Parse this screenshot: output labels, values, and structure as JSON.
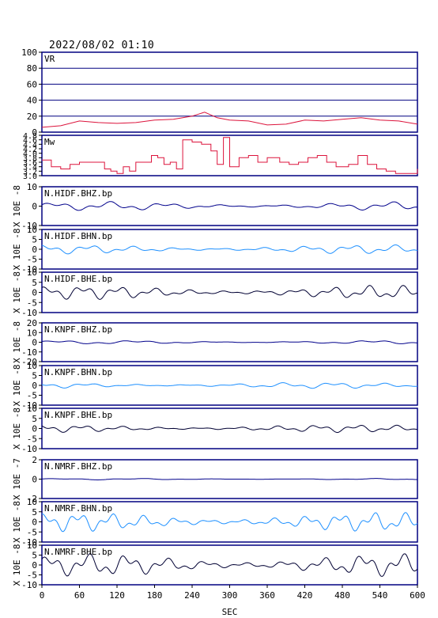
{
  "header": {
    "datetime": "2022/08/02 01:10"
  },
  "colors": {
    "axis": "#000000",
    "frame": "#000080",
    "vr": "#dc143c",
    "mw": "#dc143c",
    "bhz": "#00008b",
    "bhn": "#1e90ff",
    "bhe": "#000033"
  },
  "chart_data": {
    "type": "line",
    "xlabel": "SEC",
    "x_range": [
      0,
      600
    ],
    "x_ticks": [
      0,
      60,
      120,
      180,
      240,
      300,
      360,
      420,
      480,
      540,
      600
    ],
    "panels": [
      {
        "id": "vr",
        "label": "VR",
        "ylabel": "",
        "ylim": [
          0,
          100
        ],
        "yticks": [
          0,
          20,
          40,
          60,
          80,
          100
        ],
        "grid": true,
        "color_key": "vr",
        "points": [
          [
            0,
            6
          ],
          [
            30,
            8
          ],
          [
            60,
            14
          ],
          [
            90,
            12
          ],
          [
            120,
            11
          ],
          [
            150,
            12
          ],
          [
            180,
            15
          ],
          [
            210,
            16
          ],
          [
            240,
            20
          ],
          [
            260,
            25
          ],
          [
            280,
            18
          ],
          [
            300,
            15
          ],
          [
            330,
            14
          ],
          [
            360,
            9
          ],
          [
            390,
            10
          ],
          [
            420,
            15
          ],
          [
            450,
            14
          ],
          [
            480,
            16
          ],
          [
            510,
            18
          ],
          [
            540,
            15
          ],
          [
            570,
            14
          ],
          [
            600,
            10
          ]
        ]
      },
      {
        "id": "mw",
        "label": "Mw",
        "ylabel": "",
        "ylim": [
          3.0,
          4.8
        ],
        "yticks": [
          3.0,
          3.2,
          3.4,
          3.6,
          3.8,
          4.0,
          4.2,
          4.4,
          4.6,
          4.8
        ],
        "grid": false,
        "color_key": "mw",
        "points": [
          [
            0,
            3.7
          ],
          [
            15,
            3.4
          ],
          [
            30,
            3.3
          ],
          [
            45,
            3.5
          ],
          [
            60,
            3.6
          ],
          [
            90,
            3.6
          ],
          [
            100,
            3.3
          ],
          [
            110,
            3.2
          ],
          [
            120,
            3.1
          ],
          [
            130,
            3.4
          ],
          [
            140,
            3.2
          ],
          [
            150,
            3.6
          ],
          [
            165,
            3.6
          ],
          [
            175,
            3.9
          ],
          [
            185,
            3.8
          ],
          [
            195,
            3.5
          ],
          [
            205,
            3.6
          ],
          [
            215,
            3.3
          ],
          [
            225,
            4.6
          ],
          [
            240,
            4.5
          ],
          [
            255,
            4.4
          ],
          [
            270,
            4.1
          ],
          [
            280,
            3.5
          ],
          [
            290,
            4.7
          ],
          [
            300,
            3.4
          ],
          [
            315,
            3.8
          ],
          [
            330,
            3.9
          ],
          [
            345,
            3.6
          ],
          [
            360,
            3.8
          ],
          [
            380,
            3.6
          ],
          [
            395,
            3.5
          ],
          [
            410,
            3.6
          ],
          [
            425,
            3.8
          ],
          [
            440,
            3.9
          ],
          [
            455,
            3.6
          ],
          [
            470,
            3.4
          ],
          [
            490,
            3.5
          ],
          [
            505,
            3.9
          ],
          [
            520,
            3.5
          ],
          [
            535,
            3.3
          ],
          [
            550,
            3.2
          ],
          [
            565,
            3.1
          ],
          [
            580,
            3.1
          ],
          [
            600,
            3.3
          ]
        ]
      },
      {
        "id": "hidf-bhz",
        "label": "N.HIDF.BHZ.bp",
        "ylabel": "X 10E -8",
        "ylim": [
          -10,
          10
        ],
        "yticks": [
          -10,
          0,
          10
        ],
        "color_key": "bhz",
        "trace": {
          "amp": 0.12,
          "f1": 0.07,
          "f2": 0.18,
          "phase": 0.3
        }
      },
      {
        "id": "hidf-bhn",
        "label": "N.HIDF.BHN.bp",
        "ylabel": "X 10E -8",
        "ylim": [
          -10,
          10
        ],
        "yticks": [
          -10,
          -5,
          0,
          5,
          10
        ],
        "color_key": "bhn",
        "trace": {
          "amp": 0.12,
          "f1": 0.09,
          "f2": 0.21,
          "phase": 1.1
        }
      },
      {
        "id": "hidf-bhe",
        "label": "N.HIDF.BHE.bp",
        "ylabel": "X 10E -8",
        "ylim": [
          -10,
          10
        ],
        "yticks": [
          -10,
          -5,
          0,
          5,
          10
        ],
        "color_key": "bhe",
        "trace": {
          "amp": 0.18,
          "f1": 0.11,
          "f2": 0.24,
          "phase": 0.7
        }
      },
      {
        "id": "knpf-bhz",
        "label": "N.KNPF.BHZ.bp",
        "ylabel": "X 10E -8",
        "ylim": [
          -20,
          20
        ],
        "yticks": [
          -20,
          -10,
          0,
          10,
          20
        ],
        "color_key": "bhz",
        "trace": {
          "amp": 0.05,
          "f1": 0.05,
          "f2": 0.15,
          "phase": 0.4
        }
      },
      {
        "id": "knpf-bhn",
        "label": "N.KNPF.BHN.bp",
        "ylabel": "X 10E -8",
        "ylim": [
          -10,
          10
        ],
        "yticks": [
          -10,
          -5,
          0,
          5,
          10
        ],
        "color_key": "bhn",
        "trace": {
          "amp": 0.08,
          "f1": 0.08,
          "f2": 0.19,
          "phase": 2.0
        }
      },
      {
        "id": "knpf-bhe",
        "label": "N.KNPF.BHE.bp",
        "ylabel": "X 10E -8",
        "ylim": [
          -10,
          10
        ],
        "yticks": [
          -10,
          -5,
          0,
          5,
          10
        ],
        "color_key": "bhe",
        "trace": {
          "amp": 0.1,
          "f1": 0.1,
          "f2": 0.23,
          "phase": 1.5
        }
      },
      {
        "id": "nmrf-bhz",
        "label": "N.NMRF.BHZ.bp",
        "ylabel": "X 10E -7",
        "ylim": [
          -2,
          2
        ],
        "yticks": [
          -2,
          0,
          2
        ],
        "color_key": "bhz",
        "trace": {
          "amp": 0.02,
          "f1": 0.05,
          "f2": 0.12,
          "phase": 0.2
        }
      },
      {
        "id": "nmrf-bhn",
        "label": "N.NMRF.BHN.bp",
        "ylabel": "X 10E -8",
        "ylim": [
          -10,
          10
        ],
        "yticks": [
          -10,
          -5,
          0,
          5,
          10
        ],
        "color_key": "bhn",
        "trace": {
          "amp": 0.25,
          "f1": 0.12,
          "f2": 0.27,
          "phase": 0.9
        }
      },
      {
        "id": "nmrf-bhe",
        "label": "N.NMRF.BHE.bp",
        "ylabel": "X 10E -8",
        "ylim": [
          -10,
          10
        ],
        "yticks": [
          -10,
          -5,
          0,
          5,
          10
        ],
        "color_key": "bhe",
        "trace": {
          "amp": 0.3,
          "f1": 0.1,
          "f2": 0.25,
          "phase": 0.5
        }
      }
    ]
  }
}
